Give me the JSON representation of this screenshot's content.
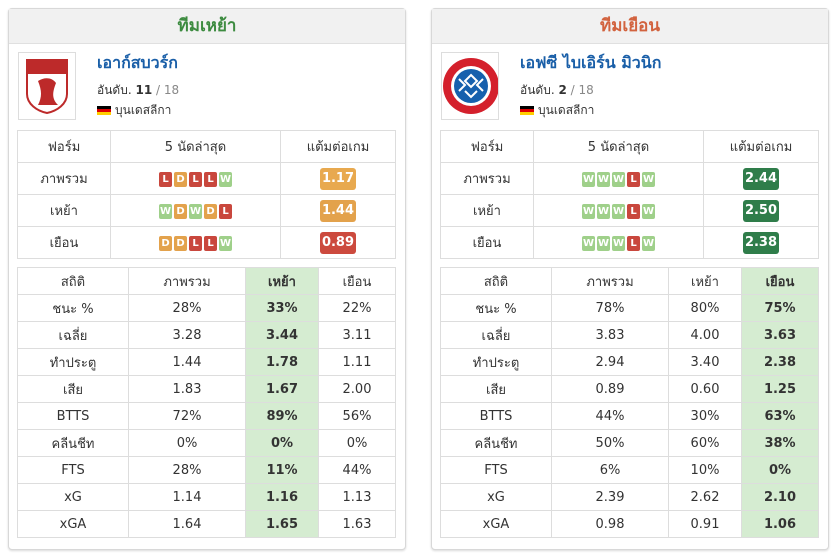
{
  "panels": [
    {
      "heading": "ทีมเหย้า",
      "heading_color": "#3d8b40",
      "logo": "fca",
      "team": {
        "name": "เอาก์สบวร์ก",
        "rank_prefix": "อันดับ.",
        "rank": "11",
        "rank_total": "/ 18",
        "league": "บุนเดสลีกา"
      },
      "form": {
        "headers": [
          "ฟอร์ม",
          "5 นัดล่าสุด",
          "แต้มต่อเกม"
        ],
        "rows": [
          {
            "label": "ภาพรวม",
            "results": [
              "L",
              "D",
              "L",
              "L",
              "W"
            ],
            "ppg": "1.17",
            "ppg_color": "#e8a94f"
          },
          {
            "label": "เหย้า",
            "results": [
              "W",
              "D",
              "W",
              "D",
              "L"
            ],
            "ppg": "1.44",
            "ppg_color": "#e3a24c"
          },
          {
            "label": "เยือน",
            "results": [
              "D",
              "D",
              "L",
              "L",
              "W"
            ],
            "ppg": "0.89",
            "ppg_color": "#cc4a3e"
          }
        ]
      },
      "stats": {
        "headers": [
          "สถิติ",
          "ภาพรวม",
          "เหย้า",
          "เยือน"
        ],
        "highlight": 2,
        "rows": [
          [
            "ชนะ %",
            "28%",
            "33%",
            "22%"
          ],
          [
            "เฉลี่ย",
            "3.28",
            "3.44",
            "3.11"
          ],
          [
            "ทำประตู",
            "1.44",
            "1.78",
            "1.11"
          ],
          [
            "เสีย",
            "1.83",
            "1.67",
            "2.00"
          ],
          [
            "BTTS",
            "72%",
            "89%",
            "56%"
          ],
          [
            "คลีนชีท",
            "0%",
            "0%",
            "0%"
          ],
          [
            "FTS",
            "28%",
            "11%",
            "44%"
          ],
          [
            "xG",
            "1.14",
            "1.16",
            "1.13"
          ],
          [
            "xGA",
            "1.64",
            "1.65",
            "1.63"
          ]
        ]
      }
    },
    {
      "heading": "ทีมเยือน",
      "heading_color": "#d2633f",
      "logo": "fcb",
      "team": {
        "name": "เอฟซี ไบเอิร์น มิวนิก",
        "rank_prefix": "อันดับ.",
        "rank": "2",
        "rank_total": "/ 18",
        "league": "บุนเดสลีกา"
      },
      "form": {
        "headers": [
          "ฟอร์ม",
          "5 นัดล่าสุด",
          "แต้มต่อเกม"
        ],
        "rows": [
          {
            "label": "ภาพรวม",
            "results": [
              "W",
              "W",
              "W",
              "L",
              "W"
            ],
            "ppg": "2.44",
            "ppg_color": "#2f7d4a"
          },
          {
            "label": "เหย้า",
            "results": [
              "W",
              "W",
              "W",
              "L",
              "W"
            ],
            "ppg": "2.50",
            "ppg_color": "#2f7d4a"
          },
          {
            "label": "เยือน",
            "results": [
              "W",
              "W",
              "W",
              "L",
              "W"
            ],
            "ppg": "2.38",
            "ppg_color": "#2f7d4a"
          }
        ]
      },
      "stats": {
        "headers": [
          "สถิติ",
          "ภาพรวม",
          "เหย้า",
          "เยือน"
        ],
        "highlight": 3,
        "rows": [
          [
            "ชนะ %",
            "78%",
            "80%",
            "75%"
          ],
          [
            "เฉลี่ย",
            "3.83",
            "4.00",
            "3.63"
          ],
          [
            "ทำประตู",
            "2.94",
            "3.40",
            "2.38"
          ],
          [
            "เสีย",
            "0.89",
            "0.60",
            "1.25"
          ],
          [
            "BTTS",
            "44%",
            "30%",
            "63%"
          ],
          [
            "คลีนชีท",
            "50%",
            "60%",
            "38%"
          ],
          [
            "FTS",
            "6%",
            "10%",
            "0%"
          ],
          [
            "xG",
            "2.39",
            "2.62",
            "2.10"
          ],
          [
            "xGA",
            "0.98",
            "0.91",
            "1.06"
          ]
        ]
      }
    }
  ]
}
